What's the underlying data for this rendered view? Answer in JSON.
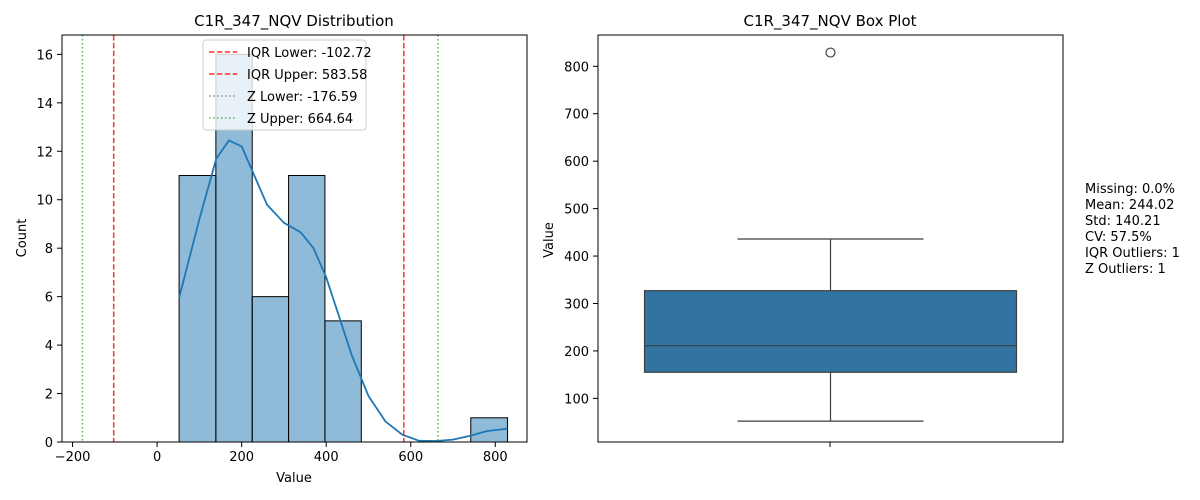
{
  "chart_data": [
    {
      "type": "bar",
      "subtype": "histogram",
      "title": "C1R_347_NQV Distribution",
      "xlabel": "Value",
      "ylabel": "Count",
      "xlim": [
        -225,
        875
      ],
      "ylim": [
        0,
        16.8
      ],
      "xticks": [
        -200,
        0,
        200,
        400,
        600,
        800
      ],
      "yticks": [
        0,
        2,
        4,
        6,
        8,
        10,
        12,
        14,
        16
      ],
      "bar_color": "#1f77b4",
      "bins": [
        {
          "x0": 52,
          "x1": 139,
          "count": 11
        },
        {
          "x0": 139,
          "x1": 225,
          "count": 16
        },
        {
          "x0": 225,
          "x1": 311,
          "count": 6
        },
        {
          "x0": 311,
          "x1": 397,
          "count": 11
        },
        {
          "x0": 397,
          "x1": 483,
          "count": 5
        },
        {
          "x0": 483,
          "x1": 570,
          "count": 0
        },
        {
          "x0": 570,
          "x1": 656,
          "count": 0
        },
        {
          "x0": 656,
          "x1": 742,
          "count": 0
        },
        {
          "x0": 742,
          "x1": 829,
          "count": 1
        }
      ],
      "kde": {
        "color": "#1f77b4",
        "x": [
          52,
          100,
          140,
          170,
          200,
          230,
          260,
          300,
          340,
          370,
          400,
          430,
          460,
          500,
          540,
          580,
          620,
          660,
          700,
          740,
          780,
          829
        ],
        "y": [
          5.95,
          9.2,
          11.7,
          12.45,
          12.2,
          11.0,
          9.8,
          9.05,
          8.65,
          8.0,
          6.8,
          5.2,
          3.6,
          1.9,
          0.85,
          0.3,
          0.05,
          0.04,
          0.1,
          0.25,
          0.45,
          0.55
        ]
      },
      "reference_lines": [
        {
          "label": "IQR Lower: -102.72",
          "value": -102.72,
          "color": "#ff0000",
          "style": "dashed"
        },
        {
          "label": "IQR Upper: 583.58",
          "value": 583.58,
          "color": "#ff0000",
          "style": "dashed"
        },
        {
          "label": "Z Lower: -176.59",
          "value": -176.59,
          "color": "#2ca02c",
          "style": "dotted"
        },
        {
          "label": "Z Upper: 664.64",
          "value": 664.64,
          "color": "#2ca02c",
          "style": "dotted"
        }
      ],
      "legend_position": "top-center",
      "grid": false
    },
    {
      "type": "box",
      "title": "C1R_347_NQV Box Plot",
      "xlabel": "",
      "ylabel": "Value",
      "ylim": [
        8,
        866
      ],
      "yticks": [
        100,
        200,
        300,
        400,
        500,
        600,
        700,
        800
      ],
      "box_color": "#3274a1",
      "whisker_low": 52,
      "q1": 155,
      "median": 211,
      "q3": 327,
      "whisker_high": 436,
      "outliers": [
        829
      ],
      "grid": false
    }
  ],
  "stats": {
    "missing": "Missing: 0.0%",
    "mean": "Mean: 244.02",
    "std": "Std: 140.21",
    "cv": "CV: 57.5%",
    "iqr_outliers": "IQR Outliers: 1",
    "z_outliers": "Z Outliers: 1"
  }
}
